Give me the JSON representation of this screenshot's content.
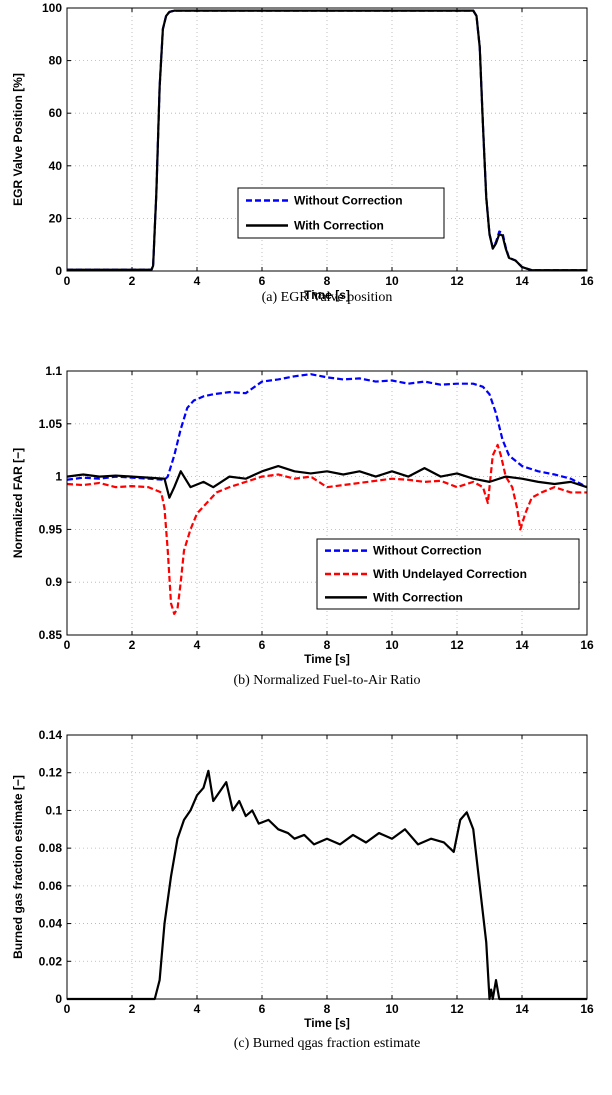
{
  "colors": {
    "blue": "#0000ff",
    "red": "#ff0000",
    "black": "#000000",
    "grid": "#b0b0b0"
  },
  "chart_data": [
    {
      "type": "line",
      "caption": "(a) EGR Valve position",
      "xlabel": "Time [s]",
      "ylabel": "EGR Valve Position [%]",
      "xlim": [
        0,
        16
      ],
      "ylim": [
        0,
        100
      ],
      "xticks": [
        0,
        2,
        4,
        6,
        8,
        10,
        12,
        14,
        16
      ],
      "xtick_labels": [
        "0",
        "2",
        "4",
        "6",
        "8",
        "10",
        "12",
        "14",
        "16"
      ],
      "yticks": [
        0,
        20,
        40,
        60,
        80,
        100
      ],
      "ytick_labels": [
        "0",
        "20",
        "40",
        "60",
        "80",
        "100"
      ],
      "grid": true,
      "legend_position": "lower-middle",
      "series": [
        {
          "name": "Without Correction",
          "color": "#0000ff",
          "style": "dashed",
          "x": [
            0,
            2.6,
            2.65,
            2.75,
            2.85,
            2.95,
            3.05,
            3.15,
            3.3,
            3.5,
            12.5,
            12.6,
            12.7,
            12.8,
            12.9,
            13.0,
            13.1,
            13.2,
            13.3,
            13.4,
            13.5,
            13.6,
            13.8,
            14.0,
            14.3,
            16
          ],
          "y": [
            0.5,
            0.5,
            2,
            30,
            70,
            92,
            97,
            98.5,
            99,
            99,
            99,
            97,
            85,
            55,
            28,
            14,
            9,
            11,
            15,
            14.5,
            9,
            5,
            4,
            1.5,
            0.3,
            0.3
          ]
        },
        {
          "name": "With Correction",
          "color": "#000000",
          "style": "solid",
          "x": [
            0,
            2.6,
            2.65,
            2.75,
            2.85,
            2.95,
            3.05,
            3.15,
            3.3,
            3.5,
            12.5,
            12.6,
            12.7,
            12.8,
            12.9,
            13.0,
            13.1,
            13.2,
            13.3,
            13.4,
            13.5,
            13.6,
            13.8,
            14.0,
            14.3,
            16
          ],
          "y": [
            0.5,
            0.5,
            2,
            30,
            70,
            92,
            97,
            98.5,
            99,
            99,
            99,
            97,
            85,
            55,
            28,
            14,
            8.5,
            10.5,
            14,
            13.5,
            8.5,
            5,
            4,
            1.5,
            0.3,
            0.3
          ]
        }
      ]
    },
    {
      "type": "line",
      "caption": "(b) Normalized Fuel-to-Air Ratio",
      "xlabel": "Time [s]",
      "ylabel": "Normalized FAR [−]",
      "xlim": [
        0,
        16
      ],
      "ylim": [
        0.85,
        1.1
      ],
      "xticks": [
        0,
        2,
        4,
        6,
        8,
        10,
        12,
        14,
        16
      ],
      "xtick_labels": [
        "0",
        "2",
        "4",
        "6",
        "8",
        "10",
        "12",
        "14",
        "16"
      ],
      "yticks": [
        0.85,
        0.9,
        0.95,
        1,
        1.05,
        1.1
      ],
      "ytick_labels": [
        "0.85",
        "0.9",
        "0.95",
        "1",
        "1.05",
        "1.1"
      ],
      "grid": true,
      "legend_position": "lower-right",
      "series": [
        {
          "name": "Without Correction",
          "color": "#0000ff",
          "style": "dashed",
          "x": [
            0,
            0.5,
            1,
            1.5,
            2,
            2.5,
            3,
            3.1,
            3.3,
            3.5,
            3.7,
            3.9,
            4.2,
            4.5,
            5,
            5.5,
            6,
            6.5,
            7,
            7.5,
            8,
            8.5,
            9,
            9.5,
            10,
            10.5,
            11,
            11.5,
            12,
            12.5,
            12.8,
            13.0,
            13.2,
            13.4,
            13.6,
            13.8,
            14,
            14.5,
            15,
            15.5,
            16
          ],
          "y": [
            0.997,
            0.999,
            0.998,
            1.0,
            0.999,
            0.998,
            0.997,
            1.0,
            1.02,
            1.045,
            1.065,
            1.072,
            1.076,
            1.078,
            1.08,
            1.079,
            1.09,
            1.092,
            1.095,
            1.097,
            1.094,
            1.092,
            1.093,
            1.09,
            1.091,
            1.088,
            1.09,
            1.087,
            1.088,
            1.088,
            1.085,
            1.078,
            1.06,
            1.035,
            1.02,
            1.015,
            1.01,
            1.005,
            1.002,
            0.998,
            0.99
          ]
        },
        {
          "name": "With Undelayed Correction",
          "color": "#ff0000",
          "style": "dashed",
          "x": [
            0,
            0.5,
            1,
            1.5,
            2,
            2.5,
            2.9,
            3.0,
            3.1,
            3.2,
            3.3,
            3.4,
            3.5,
            3.6,
            3.8,
            4.0,
            4.3,
            4.6,
            5,
            5.5,
            6,
            6.5,
            7,
            7.5,
            8,
            8.5,
            9,
            9.5,
            10,
            10.5,
            11,
            11.5,
            12,
            12.5,
            12.8,
            12.95,
            13.1,
            13.25,
            13.35,
            13.5,
            13.7,
            13.85,
            13.95,
            14.1,
            14.3,
            14.6,
            15,
            15.5,
            16
          ],
          "y": [
            0.993,
            0.992,
            0.994,
            0.99,
            0.991,
            0.99,
            0.985,
            0.97,
            0.93,
            0.88,
            0.87,
            0.875,
            0.9,
            0.93,
            0.95,
            0.965,
            0.975,
            0.985,
            0.99,
            0.995,
            1.0,
            1.002,
            0.998,
            1.0,
            0.99,
            0.992,
            0.994,
            0.996,
            0.998,
            0.997,
            0.995,
            0.996,
            0.99,
            0.995,
            0.99,
            0.975,
            1.02,
            1.03,
            1.02,
            1.0,
            0.99,
            0.97,
            0.95,
            0.965,
            0.98,
            0.985,
            0.99,
            0.985,
            0.985
          ]
        },
        {
          "name": "With Correction",
          "color": "#000000",
          "style": "solid",
          "x": [
            0,
            0.5,
            1,
            1.5,
            2,
            2.5,
            3.0,
            3.15,
            3.3,
            3.5,
            3.8,
            4.2,
            4.5,
            5,
            5.5,
            6,
            6.5,
            7,
            7.5,
            8,
            8.5,
            9,
            9.5,
            10,
            10.5,
            11,
            11.5,
            12,
            12.5,
            13,
            13.5,
            14,
            14.5,
            15,
            15.5,
            16
          ],
          "y": [
            1.0,
            1.002,
            1.0,
            1.001,
            1.0,
            0.999,
            0.998,
            0.98,
            0.99,
            1.005,
            0.99,
            0.995,
            0.99,
            1.0,
            0.998,
            1.005,
            1.01,
            1.005,
            1.003,
            1.005,
            1.002,
            1.005,
            1.0,
            1.005,
            1.0,
            1.008,
            1.0,
            1.003,
            0.998,
            0.995,
            1.0,
            0.998,
            0.995,
            0.993,
            0.995,
            0.99
          ]
        }
      ]
    },
    {
      "type": "line",
      "caption": "(c) Burned qgas fraction estimate",
      "xlabel": "Time [s]",
      "ylabel": "Burned gas fraction estimate [−]",
      "xlim": [
        0,
        16
      ],
      "ylim": [
        0,
        0.14
      ],
      "xticks": [
        0,
        2,
        4,
        6,
        8,
        10,
        12,
        14,
        16
      ],
      "xtick_labels": [
        "0",
        "2",
        "4",
        "6",
        "8",
        "10",
        "12",
        "14",
        "16"
      ],
      "yticks": [
        0,
        0.02,
        0.04,
        0.06,
        0.08,
        0.1,
        0.12,
        0.14
      ],
      "ytick_labels": [
        "0",
        "0.02",
        "0.04",
        "0.06",
        "0.08",
        "0.1",
        "0.12",
        "0.14"
      ],
      "grid": true,
      "series": [
        {
          "name": "",
          "color": "#000000",
          "style": "solid",
          "x": [
            0,
            2.5,
            2.7,
            2.85,
            3.0,
            3.2,
            3.4,
            3.6,
            3.8,
            4.0,
            4.2,
            4.35,
            4.5,
            4.7,
            4.9,
            5.1,
            5.3,
            5.5,
            5.7,
            5.9,
            6.2,
            6.5,
            6.8,
            7.0,
            7.3,
            7.6,
            8.0,
            8.4,
            8.8,
            9.2,
            9.6,
            10.0,
            10.4,
            10.8,
            11.2,
            11.6,
            11.9,
            12.1,
            12.3,
            12.5,
            12.7,
            12.9,
            13.0,
            13.05,
            13.1,
            13.2,
            13.3,
            13.5,
            14.0,
            16
          ],
          "y": [
            0,
            0,
            0.0,
            0.01,
            0.04,
            0.065,
            0.085,
            0.095,
            0.1,
            0.108,
            0.112,
            0.121,
            0.105,
            0.11,
            0.115,
            0.1,
            0.105,
            0.097,
            0.1,
            0.093,
            0.095,
            0.09,
            0.088,
            0.085,
            0.087,
            0.082,
            0.085,
            0.082,
            0.087,
            0.083,
            0.088,
            0.085,
            0.09,
            0.082,
            0.085,
            0.083,
            0.078,
            0.095,
            0.099,
            0.09,
            0.06,
            0.03,
            0.0,
            0.005,
            0.0,
            0.01,
            0.0,
            0.0,
            0.0,
            0.0
          ]
        }
      ]
    }
  ]
}
